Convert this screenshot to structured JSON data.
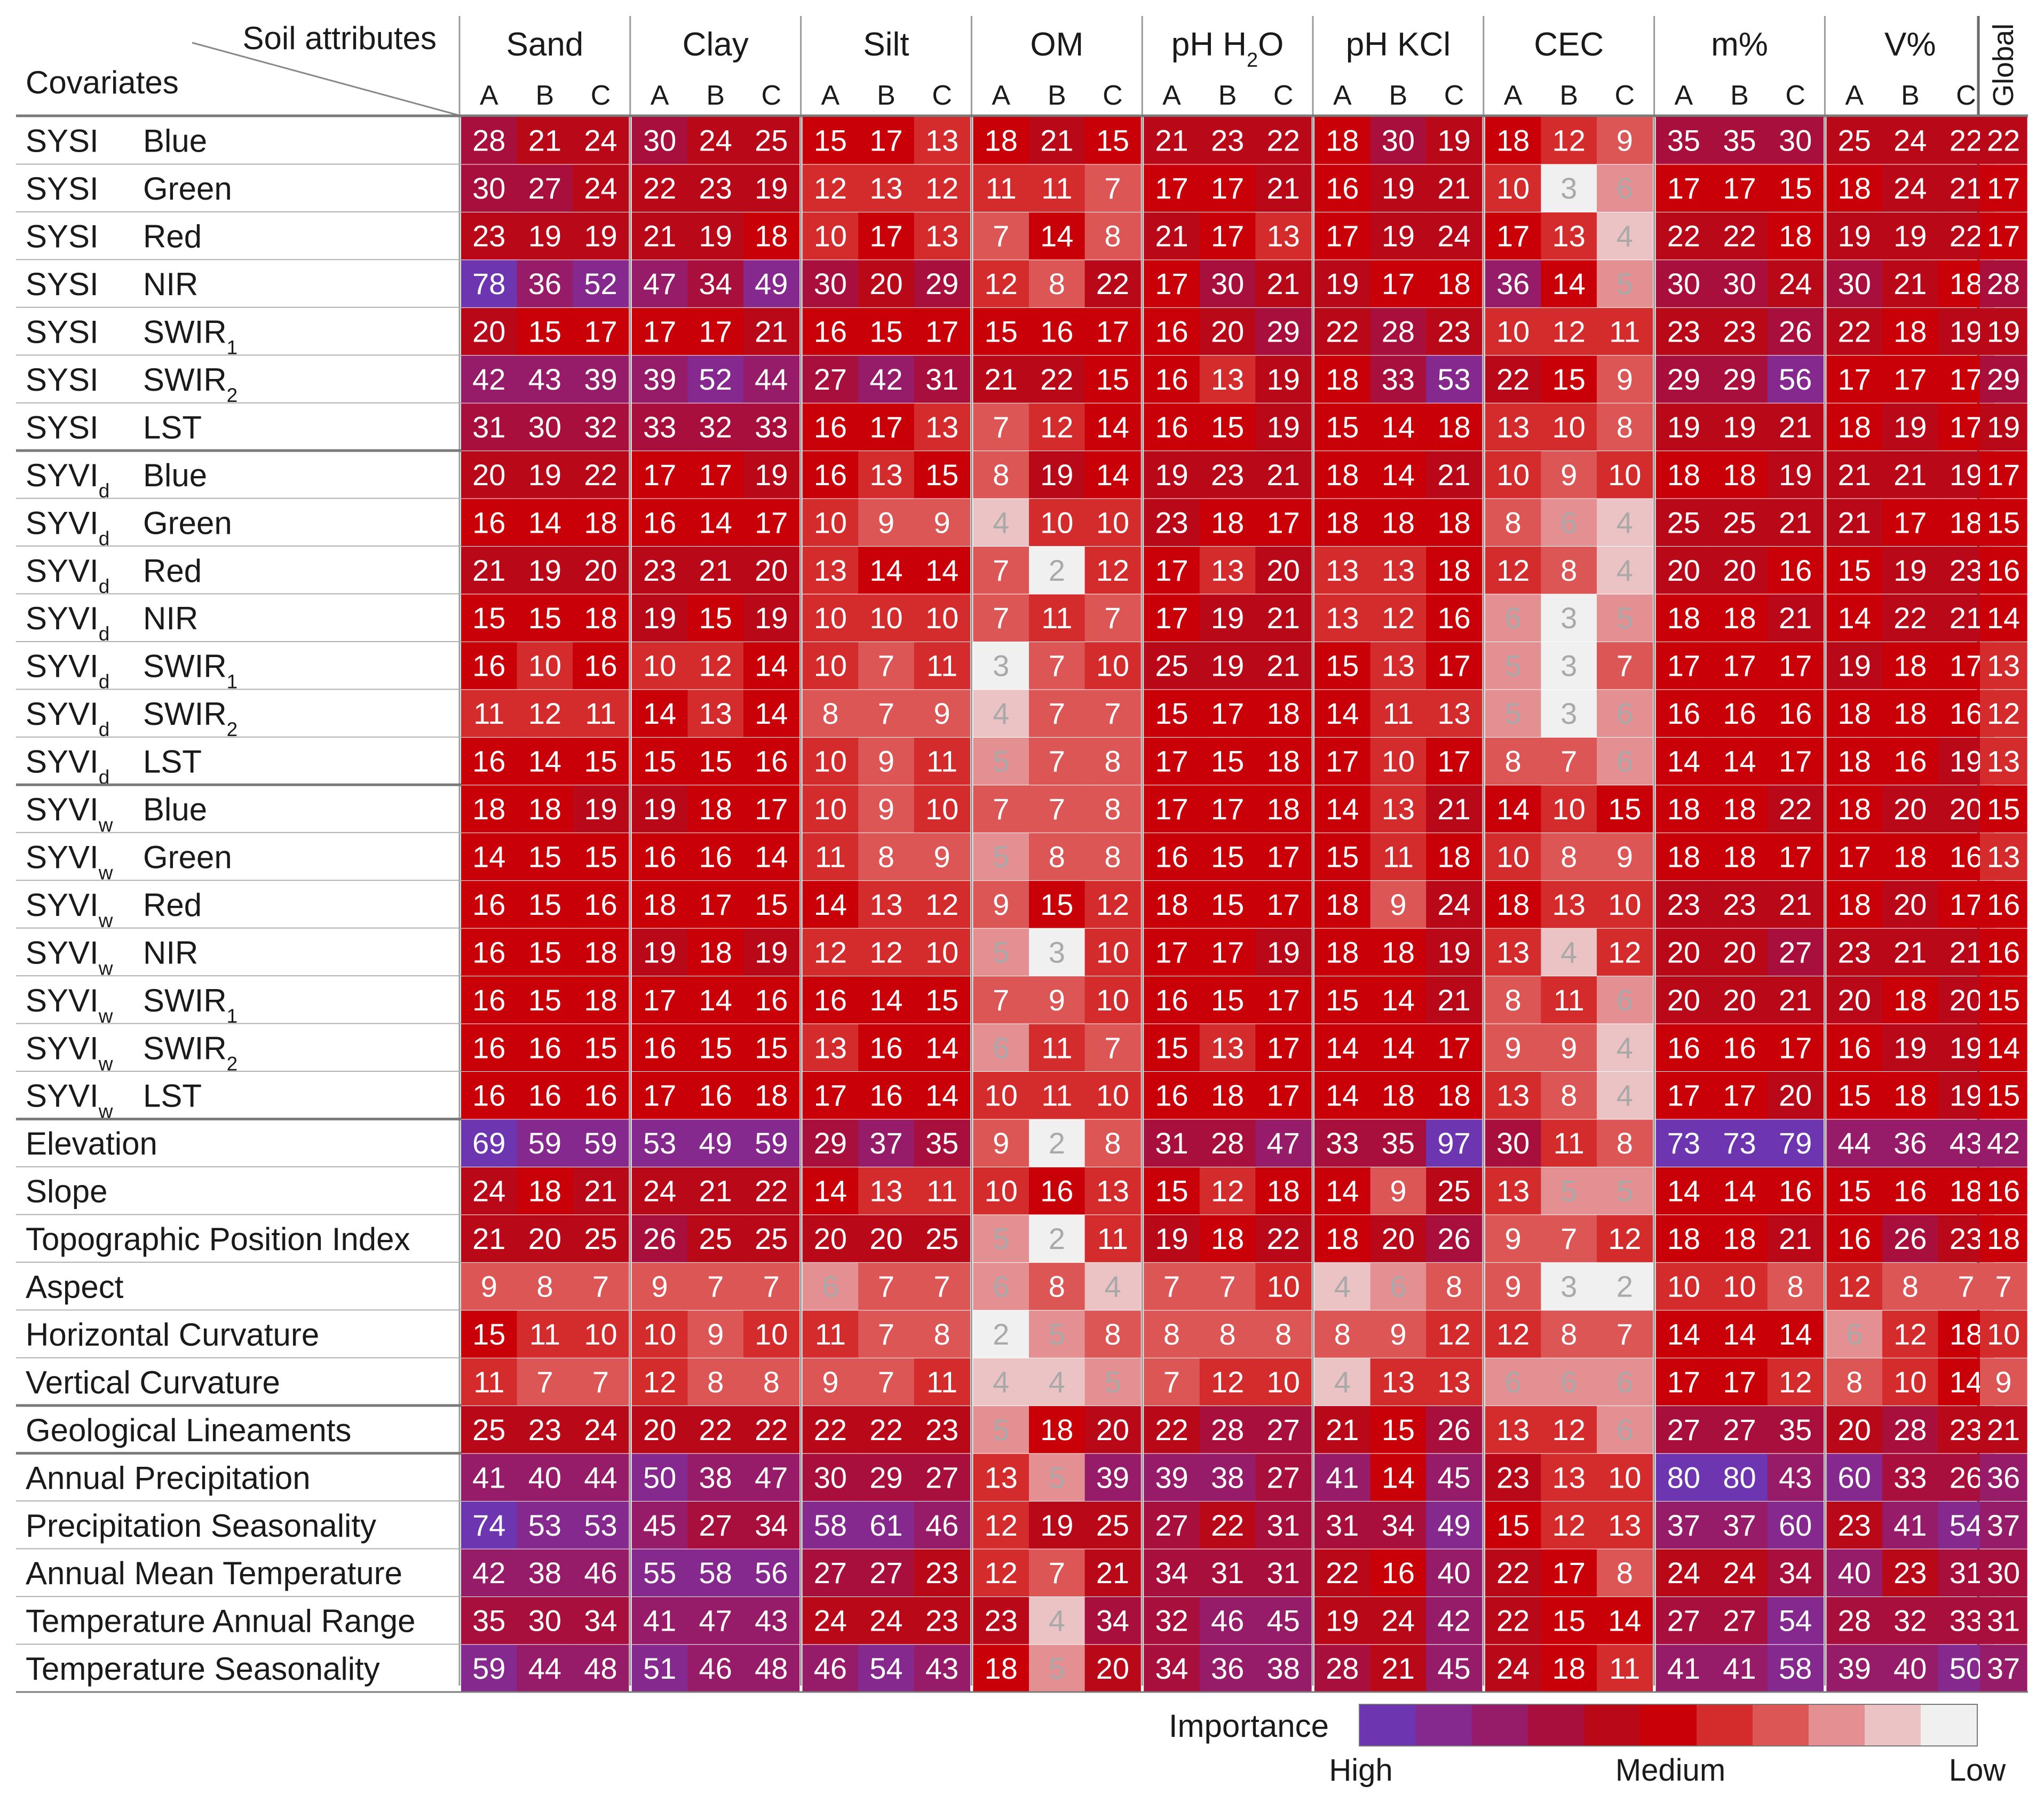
{
  "chart_data": {
    "type": "heatmap",
    "title": "",
    "header_corner_top": "Soil attributes",
    "header_corner_bottom": "Covariates",
    "attributes": [
      {
        "name": "Sand",
        "sub": ""
      },
      {
        "name": "Clay",
        "sub": ""
      },
      {
        "name": "Silt",
        "sub": ""
      },
      {
        "name": "OM",
        "sub": ""
      },
      {
        "name": "pH H",
        "sub": "2",
        "tail": "O"
      },
      {
        "name": "pH KCl",
        "sub": ""
      },
      {
        "name": "CEC",
        "sub": ""
      },
      {
        "name": "m%",
        "sub": ""
      },
      {
        "name": "V%",
        "sub": ""
      }
    ],
    "depths": [
      "A",
      "B",
      "C"
    ],
    "global_label": "Global",
    "rows": [
      {
        "group": "SYSI",
        "group_sub": "",
        "band": "Blue",
        "band_sub": "",
        "values": [
          28,
          21,
          24,
          30,
          24,
          25,
          15,
          17,
          13,
          18,
          21,
          15,
          21,
          23,
          22,
          18,
          30,
          19,
          18,
          12,
          9,
          35,
          35,
          30,
          25,
          24,
          22,
          22
        ]
      },
      {
        "group": "SYSI",
        "group_sub": "",
        "band": "Green",
        "band_sub": "",
        "values": [
          30,
          27,
          24,
          22,
          23,
          19,
          12,
          13,
          12,
          11,
          11,
          7,
          17,
          17,
          21,
          16,
          19,
          21,
          10,
          3,
          6,
          17,
          17,
          15,
          18,
          24,
          21,
          17
        ]
      },
      {
        "group": "SYSI",
        "group_sub": "",
        "band": "Red",
        "band_sub": "",
        "values": [
          23,
          19,
          19,
          21,
          19,
          18,
          10,
          17,
          13,
          7,
          14,
          8,
          21,
          17,
          13,
          17,
          19,
          24,
          17,
          13,
          4,
          22,
          22,
          18,
          19,
          19,
          22,
          17
        ]
      },
      {
        "group": "SYSI",
        "group_sub": "",
        "band": "NIR",
        "band_sub": "",
        "values": [
          78,
          36,
          52,
          47,
          34,
          49,
          30,
          20,
          29,
          12,
          8,
          22,
          17,
          30,
          21,
          19,
          17,
          18,
          36,
          14,
          5,
          30,
          30,
          24,
          30,
          21,
          18,
          28
        ]
      },
      {
        "group": "SYSI",
        "group_sub": "",
        "band": "SWIR",
        "band_sub": "1",
        "values": [
          20,
          15,
          17,
          17,
          17,
          21,
          16,
          15,
          17,
          15,
          16,
          17,
          16,
          20,
          29,
          22,
          28,
          23,
          10,
          12,
          11,
          23,
          23,
          26,
          22,
          18,
          19,
          19
        ]
      },
      {
        "group": "SYSI",
        "group_sub": "",
        "band": "SWIR",
        "band_sub": "2",
        "values": [
          42,
          43,
          39,
          39,
          52,
          44,
          27,
          42,
          31,
          21,
          22,
          15,
          16,
          13,
          19,
          18,
          33,
          53,
          22,
          15,
          9,
          29,
          29,
          56,
          17,
          17,
          17,
          29
        ]
      },
      {
        "group": "SYSI",
        "group_sub": "",
        "band": "LST",
        "band_sub": "",
        "values": [
          31,
          30,
          32,
          33,
          32,
          33,
          16,
          17,
          13,
          7,
          12,
          14,
          16,
          15,
          19,
          15,
          14,
          18,
          13,
          10,
          8,
          19,
          19,
          21,
          18,
          19,
          17,
          19
        ]
      },
      {
        "group": "SYVI",
        "group_sub": "d",
        "band": "Blue",
        "band_sub": "",
        "values": [
          20,
          19,
          22,
          17,
          17,
          19,
          16,
          13,
          15,
          8,
          19,
          14,
          19,
          23,
          21,
          18,
          14,
          21,
          10,
          9,
          10,
          18,
          18,
          19,
          21,
          21,
          19,
          17
        ]
      },
      {
        "group": "SYVI",
        "group_sub": "d",
        "band": "Green",
        "band_sub": "",
        "values": [
          16,
          14,
          18,
          16,
          14,
          17,
          10,
          9,
          9,
          4,
          10,
          10,
          23,
          18,
          17,
          18,
          18,
          18,
          8,
          6,
          4,
          25,
          25,
          21,
          21,
          17,
          18,
          15
        ]
      },
      {
        "group": "SYVI",
        "group_sub": "d",
        "band": "Red",
        "band_sub": "",
        "values": [
          21,
          19,
          20,
          23,
          21,
          20,
          13,
          14,
          14,
          7,
          2,
          12,
          17,
          13,
          20,
          13,
          13,
          18,
          12,
          8,
          4,
          20,
          20,
          16,
          15,
          19,
          23,
          16
        ]
      },
      {
        "group": "SYVI",
        "group_sub": "d",
        "band": "NIR",
        "band_sub": "",
        "values": [
          15,
          15,
          18,
          19,
          15,
          19,
          10,
          10,
          10,
          7,
          11,
          7,
          17,
          19,
          21,
          13,
          12,
          16,
          6,
          3,
          5,
          18,
          18,
          21,
          14,
          22,
          21,
          14
        ]
      },
      {
        "group": "SYVI",
        "group_sub": "d",
        "band": "SWIR",
        "band_sub": "1",
        "values": [
          16,
          10,
          16,
          10,
          12,
          14,
          10,
          7,
          11,
          3,
          7,
          10,
          25,
          19,
          21,
          15,
          13,
          17,
          5,
          3,
          7,
          17,
          17,
          17,
          19,
          18,
          17,
          13
        ]
      },
      {
        "group": "SYVI",
        "group_sub": "d",
        "band": "SWIR",
        "band_sub": "2",
        "values": [
          11,
          12,
          11,
          14,
          13,
          14,
          8,
          7,
          9,
          4,
          7,
          7,
          15,
          17,
          18,
          14,
          11,
          13,
          5,
          3,
          6,
          16,
          16,
          16,
          18,
          18,
          16,
          12
        ]
      },
      {
        "group": "SYVI",
        "group_sub": "d",
        "band": "LST",
        "band_sub": "",
        "values": [
          16,
          14,
          15,
          15,
          15,
          16,
          10,
          9,
          11,
          5,
          7,
          8,
          17,
          15,
          18,
          17,
          10,
          17,
          8,
          7,
          6,
          14,
          14,
          17,
          18,
          16,
          19,
          13
        ]
      },
      {
        "group": "SYVI",
        "group_sub": "w",
        "band": "Blue",
        "band_sub": "",
        "values": [
          18,
          18,
          19,
          19,
          18,
          17,
          10,
          9,
          10,
          7,
          7,
          8,
          17,
          17,
          18,
          14,
          13,
          21,
          14,
          10,
          15,
          18,
          18,
          22,
          18,
          20,
          20,
          15
        ]
      },
      {
        "group": "SYVI",
        "group_sub": "w",
        "band": "Green",
        "band_sub": "",
        "values": [
          14,
          15,
          15,
          16,
          16,
          14,
          11,
          8,
          9,
          5,
          8,
          8,
          16,
          15,
          17,
          15,
          11,
          18,
          10,
          8,
          9,
          18,
          18,
          17,
          17,
          18,
          16,
          13
        ]
      },
      {
        "group": "SYVI",
        "group_sub": "w",
        "band": "Red",
        "band_sub": "",
        "values": [
          16,
          15,
          16,
          18,
          17,
          15,
          14,
          13,
          12,
          9,
          15,
          12,
          18,
          15,
          17,
          18,
          9,
          24,
          18,
          13,
          10,
          23,
          23,
          21,
          18,
          20,
          17,
          16
        ]
      },
      {
        "group": "SYVI",
        "group_sub": "w",
        "band": "NIR",
        "band_sub": "",
        "values": [
          16,
          15,
          18,
          19,
          18,
          19,
          12,
          12,
          10,
          5,
          3,
          10,
          17,
          17,
          19,
          18,
          18,
          19,
          13,
          4,
          12,
          20,
          20,
          27,
          23,
          21,
          21,
          16
        ]
      },
      {
        "group": "SYVI",
        "group_sub": "w",
        "band": "SWIR",
        "band_sub": "1",
        "values": [
          16,
          15,
          18,
          17,
          14,
          16,
          16,
          14,
          15,
          7,
          9,
          10,
          16,
          15,
          17,
          15,
          14,
          21,
          8,
          11,
          6,
          20,
          20,
          21,
          20,
          18,
          20,
          15
        ]
      },
      {
        "group": "SYVI",
        "group_sub": "w",
        "band": "SWIR",
        "band_sub": "2",
        "values": [
          16,
          16,
          15,
          16,
          15,
          15,
          13,
          16,
          14,
          6,
          11,
          7,
          15,
          13,
          17,
          14,
          14,
          17,
          9,
          9,
          4,
          16,
          16,
          17,
          16,
          19,
          19,
          14
        ]
      },
      {
        "group": "SYVI",
        "group_sub": "w",
        "band": "LST",
        "band_sub": "",
        "values": [
          16,
          16,
          16,
          17,
          16,
          18,
          17,
          16,
          14,
          10,
          11,
          10,
          16,
          18,
          17,
          14,
          18,
          18,
          13,
          8,
          4,
          17,
          17,
          20,
          15,
          18,
          19,
          15
        ]
      },
      {
        "group": "Elevation",
        "group_sub": "",
        "band": "",
        "band_sub": "",
        "values": [
          69,
          59,
          59,
          53,
          49,
          59,
          29,
          37,
          35,
          9,
          2,
          8,
          31,
          28,
          47,
          33,
          35,
          97,
          30,
          11,
          8,
          73,
          73,
          79,
          44,
          36,
          43,
          42
        ]
      },
      {
        "group": "Slope",
        "group_sub": "",
        "band": "",
        "band_sub": "",
        "values": [
          24,
          18,
          21,
          24,
          21,
          22,
          14,
          13,
          11,
          10,
          16,
          13,
          15,
          12,
          18,
          14,
          9,
          25,
          13,
          5,
          5,
          14,
          14,
          16,
          15,
          16,
          18,
          16
        ]
      },
      {
        "group": "Topographic Position Index",
        "group_sub": "",
        "band": "",
        "band_sub": "",
        "values": [
          21,
          20,
          25,
          26,
          25,
          25,
          20,
          20,
          25,
          5,
          2,
          11,
          19,
          18,
          22,
          18,
          20,
          26,
          9,
          7,
          12,
          18,
          18,
          21,
          16,
          26,
          23,
          18
        ]
      },
      {
        "group": "Aspect",
        "group_sub": "",
        "band": "",
        "band_sub": "",
        "values": [
          9,
          8,
          7,
          9,
          7,
          7,
          6,
          7,
          7,
          6,
          8,
          4,
          7,
          7,
          10,
          4,
          6,
          8,
          9,
          3,
          2,
          10,
          10,
          8,
          12,
          8,
          7,
          7
        ]
      },
      {
        "group": "Horizontal Curvature",
        "group_sub": "",
        "band": "",
        "band_sub": "",
        "values": [
          15,
          11,
          10,
          10,
          9,
          10,
          11,
          7,
          8,
          2,
          5,
          8,
          8,
          8,
          8,
          8,
          9,
          12,
          12,
          8,
          7,
          14,
          14,
          14,
          6,
          12,
          18,
          10
        ]
      },
      {
        "group": "Vertical Curvature",
        "group_sub": "",
        "band": "",
        "band_sub": "",
        "values": [
          11,
          7,
          7,
          12,
          8,
          8,
          9,
          7,
          11,
          4,
          4,
          5,
          7,
          12,
          10,
          4,
          13,
          13,
          6,
          6,
          6,
          17,
          17,
          12,
          8,
          10,
          14,
          9
        ]
      },
      {
        "group": "Geological Lineaments",
        "group_sub": "",
        "band": "",
        "band_sub": "",
        "values": [
          25,
          23,
          24,
          20,
          22,
          22,
          22,
          22,
          23,
          5,
          18,
          20,
          22,
          28,
          27,
          21,
          15,
          26,
          13,
          12,
          6,
          27,
          27,
          35,
          20,
          28,
          23,
          21
        ]
      },
      {
        "group": "Annual Precipitation",
        "group_sub": "",
        "band": "",
        "band_sub": "",
        "values": [
          41,
          40,
          44,
          50,
          38,
          47,
          30,
          29,
          27,
          13,
          5,
          39,
          39,
          38,
          27,
          41,
          14,
          45,
          23,
          13,
          10,
          80,
          80,
          43,
          60,
          33,
          26,
          36
        ]
      },
      {
        "group": "Precipitation Seasonality",
        "group_sub": "",
        "band": "",
        "band_sub": "",
        "values": [
          74,
          53,
          53,
          45,
          27,
          34,
          58,
          61,
          46,
          12,
          19,
          25,
          27,
          22,
          31,
          31,
          34,
          49,
          15,
          12,
          13,
          37,
          37,
          60,
          23,
          41,
          54,
          37
        ]
      },
      {
        "group": "Annual Mean Temperature",
        "group_sub": "",
        "band": "",
        "band_sub": "",
        "values": [
          42,
          38,
          46,
          55,
          58,
          56,
          27,
          27,
          23,
          12,
          7,
          21,
          34,
          31,
          31,
          22,
          16,
          40,
          22,
          17,
          8,
          24,
          24,
          34,
          40,
          23,
          31,
          30
        ]
      },
      {
        "group": "Temperature Annual Range",
        "group_sub": "",
        "band": "",
        "band_sub": "",
        "values": [
          35,
          30,
          34,
          41,
          47,
          43,
          24,
          24,
          23,
          23,
          4,
          34,
          32,
          46,
          45,
          19,
          24,
          42,
          22,
          15,
          14,
          27,
          27,
          54,
          28,
          32,
          33,
          31
        ]
      },
      {
        "group": "Temperature Seasonality",
        "group_sub": "",
        "band": "",
        "band_sub": "",
        "values": [
          59,
          44,
          48,
          51,
          46,
          48,
          46,
          54,
          43,
          18,
          5,
          20,
          34,
          36,
          38,
          28,
          21,
          45,
          24,
          18,
          11,
          41,
          41,
          58,
          39,
          40,
          50,
          37
        ]
      }
    ],
    "group_breaks_after_row": [
      6,
      13,
      20,
      26,
      27
    ],
    "color_scale": [
      "#6d35b0",
      "#86298e",
      "#961b68",
      "#a80f3c",
      "#b90818",
      "#c90008",
      "#d42c2c",
      "#dc5656",
      "#e48f92",
      "#ecc3c5",
      "#f1f0f0"
    ],
    "legend": {
      "title": "Importance",
      "high": "High",
      "medium": "Medium",
      "low": "Low"
    }
  }
}
